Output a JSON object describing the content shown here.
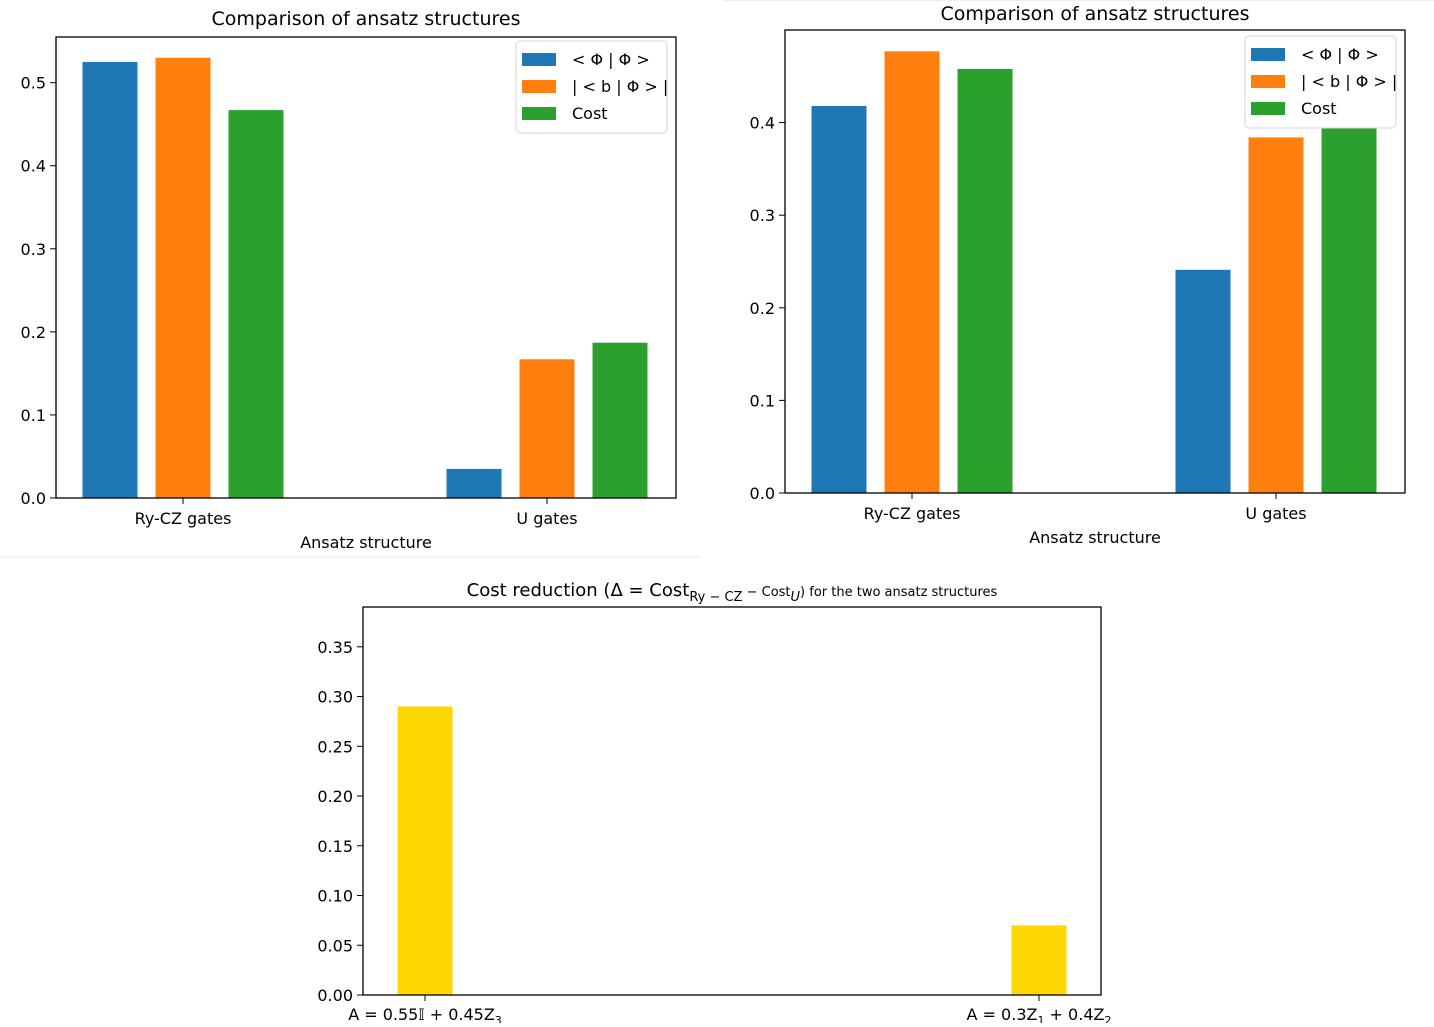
{
  "chart_data": [
    {
      "type": "bar",
      "title": "Comparison of ansatz structures",
      "xlabel": "Ansatz structure",
      "ylabel": "",
      "categories": [
        "Ry-CZ gates",
        "U gates"
      ],
      "series": [
        {
          "name": "< Φ | Φ >",
          "color": "#1f77b4",
          "values": [
            0.525,
            0.035
          ]
        },
        {
          "name": "| < b | Φ > |",
          "color": "#ff7f0e",
          "values": [
            0.53,
            0.167
          ]
        },
        {
          "name": "Cost",
          "color": "#2ca02c",
          "values": [
            0.467,
            0.187
          ]
        }
      ],
      "ylim": [
        0,
        0.555
      ],
      "yticks": [
        0.0,
        0.1,
        0.2,
        0.3,
        0.4,
        0.5
      ],
      "ytick_labels": [
        "0.0",
        "0.1",
        "0.2",
        "0.3",
        "0.4",
        "0.5"
      ],
      "grid": false,
      "legend_position": "top-right"
    },
    {
      "type": "bar",
      "title": "Comparison of ansatz structures",
      "xlabel": "Ansatz structure",
      "ylabel": "",
      "categories": [
        "Ry-CZ gates",
        "U gates"
      ],
      "series": [
        {
          "name": "< Φ | Φ >",
          "color": "#1f77b4",
          "values": [
            0.418,
            0.241
          ]
        },
        {
          "name": "| < b | Φ > |",
          "color": "#ff7f0e",
          "values": [
            0.477,
            0.384
          ]
        },
        {
          "name": "Cost",
          "color": "#2ca02c",
          "values": [
            0.458,
            0.394
          ]
        }
      ],
      "ylim": [
        0,
        0.5
      ],
      "yticks": [
        0.0,
        0.1,
        0.2,
        0.3,
        0.4
      ],
      "ytick_labels": [
        "0.0",
        "0.1",
        "0.2",
        "0.3",
        "0.4"
      ],
      "grid": false,
      "legend_position": "top-right"
    },
    {
      "type": "bar",
      "title_parts": {
        "prefix": "Cost reduction (Δ = Cost",
        "sub1": "Ry − CZ",
        "mid": " − Cost",
        "sub2": "U",
        "suffix": ") for the two ansatz structures"
      },
      "title": "Cost reduction (Δ = Cost_{Ry − CZ} − Cost_U) for the two ansatz structures",
      "xlabel": "",
      "ylabel": "",
      "categories": [
        "A = 0.55𝕀 + 0.45Z₃",
        "A = 0.3Z₁ + 0.4Z₂"
      ],
      "category_parts": [
        {
          "main": "A = 0.55𝕀 + 0.45Z",
          "sub": "3",
          "tail": ""
        },
        {
          "main": "A = 0.3Z",
          "sub": "1",
          "tail": " + 0.4Z",
          "sub2": "2"
        }
      ],
      "series": [
        {
          "name": "Δ",
          "color": "#ffd700",
          "values": [
            0.29,
            0.07
          ]
        }
      ],
      "ylim": [
        0,
        0.39
      ],
      "yticks": [
        0.0,
        0.05,
        0.1,
        0.15,
        0.2,
        0.25,
        0.3,
        0.35
      ],
      "ytick_labels": [
        "0.00",
        "0.05",
        "0.10",
        "0.15",
        "0.20",
        "0.25",
        "0.30",
        "0.35"
      ],
      "grid": false,
      "legend_position": "none"
    }
  ]
}
